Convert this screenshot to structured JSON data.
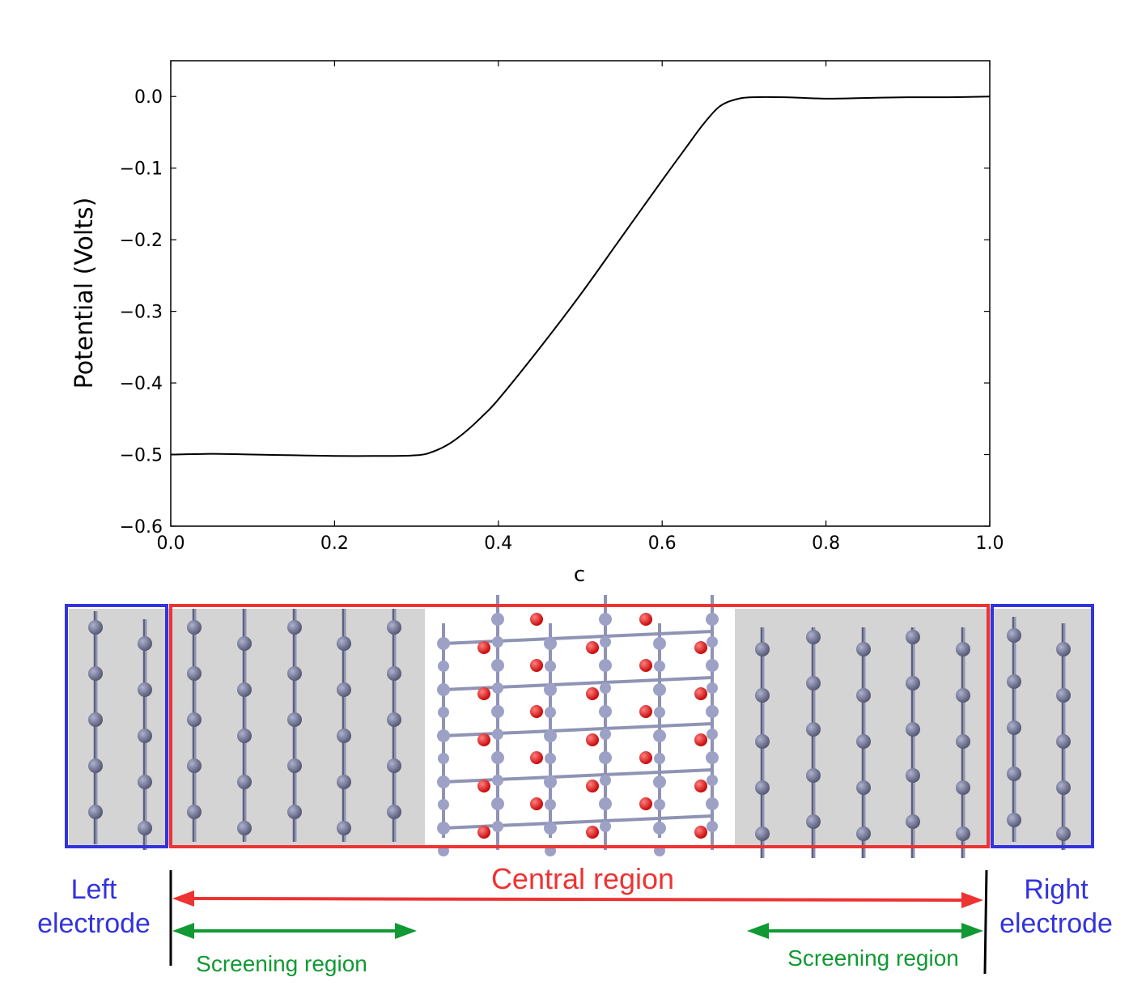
{
  "chart_data": {
    "type": "line",
    "xlabel": "c",
    "ylabel": "Potential (Volts)",
    "xlim": [
      0.0,
      1.0
    ],
    "ylim": [
      -0.6,
      0.05
    ],
    "xticks": [
      "0.0",
      "0.2",
      "0.4",
      "0.6",
      "0.8",
      "1.0"
    ],
    "yticks": [
      "0.0",
      "−0.1",
      "−0.2",
      "−0.3",
      "−0.4",
      "−0.5",
      "−0.6"
    ],
    "grid": false,
    "series": [
      {
        "color": "#000000",
        "x": [
          0.0,
          0.05,
          0.1,
          0.15,
          0.2,
          0.25,
          0.3,
          0.32,
          0.34,
          0.36,
          0.38,
          0.4,
          0.45,
          0.5,
          0.55,
          0.6,
          0.63,
          0.65,
          0.67,
          0.69,
          0.71,
          0.75,
          0.8,
          0.85,
          0.9,
          0.95,
          1.0
        ],
        "y": [
          -0.5,
          -0.499,
          -0.5,
          -0.501,
          -0.502,
          -0.502,
          -0.501,
          -0.496,
          -0.485,
          -0.468,
          -0.447,
          -0.423,
          -0.352,
          -0.277,
          -0.197,
          -0.117,
          -0.07,
          -0.039,
          -0.014,
          -0.004,
          -0.001,
          -0.001,
          -0.003,
          -0.002,
          -0.001,
          -0.001,
          0.0
        ]
      }
    ]
  },
  "diagram": {
    "left_electrode": [
      "Left",
      "electrode"
    ],
    "right_electrode": [
      "Right",
      "electrode"
    ],
    "central_region": "Central region",
    "screening_left": "Screening region",
    "screening_right": "Screening region",
    "colors": {
      "electrode_box": "#3333dd",
      "central_box": "#ee3333",
      "screening_arrow": "#119933",
      "metal_atom": "#6d7191",
      "oxygen_atom": "#ee1111",
      "bond": "#8f93b4",
      "shade": "#d4d4d4"
    }
  }
}
